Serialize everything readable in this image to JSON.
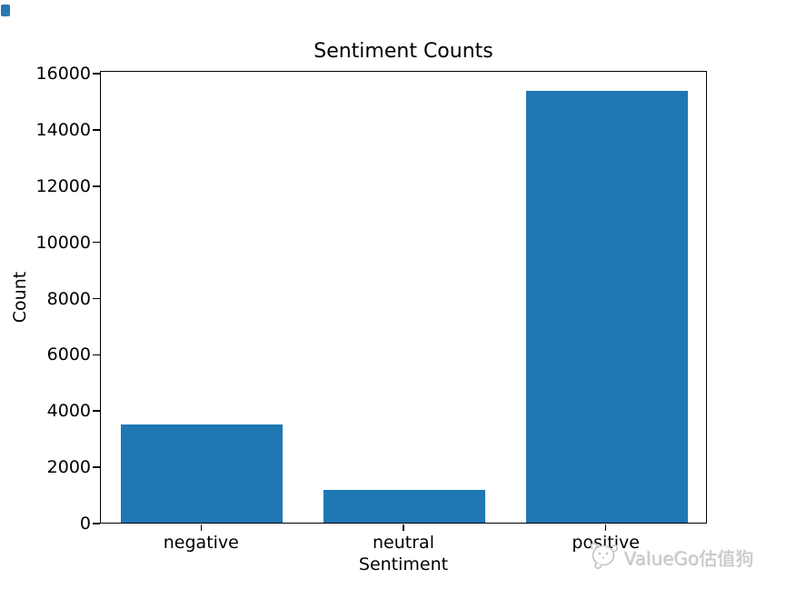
{
  "chart_data": {
    "type": "bar",
    "title": "Sentiment Counts",
    "xlabel": "Sentiment",
    "ylabel": "Count",
    "categories": [
      "negative",
      "neutral",
      "positive"
    ],
    "values": [
      3490,
      1180,
      15350
    ],
    "yticks": [
      0,
      2000,
      4000,
      6000,
      8000,
      10000,
      12000,
      14000,
      16000
    ],
    "ylim": [
      0,
      16100
    ],
    "bar_color": "#1f77b4",
    "grid": false,
    "legend": false
  },
  "watermark": {
    "text": "ValueGo估值狗",
    "icon": "dog-face-icon",
    "color": "#c7c7c7"
  },
  "decor": {
    "corner_square_color": "#2878b5"
  }
}
